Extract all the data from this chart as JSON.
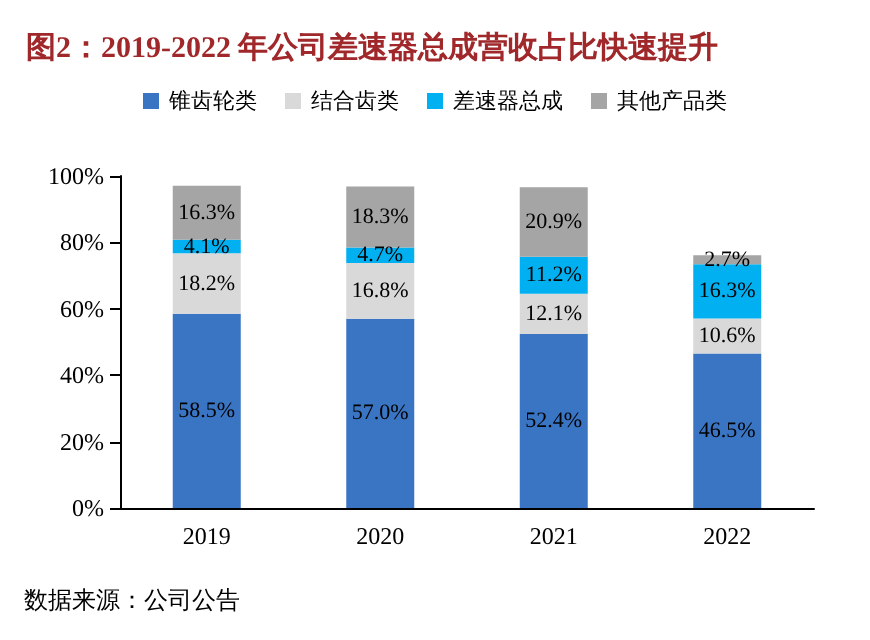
{
  "chart_data": {
    "type": "bar",
    "title": "图2：2019-2022 年公司差速器总成营收占比快速提升",
    "stacked": true,
    "categories": [
      "2019",
      "2020",
      "2021",
      "2022"
    ],
    "series": [
      {
        "name": "锥齿轮类",
        "color": "#3a75c4",
        "values": [
          58.5,
          57.0,
          52.4,
          46.5
        ],
        "value_labels": [
          "58.5%",
          "57.0%",
          "52.4%",
          "46.5%"
        ]
      },
      {
        "name": "结合齿类",
        "color": "#d9d9d9",
        "values": [
          18.2,
          16.8,
          12.1,
          10.6
        ],
        "value_labels": [
          "18.2%",
          "16.8%",
          "12.1%",
          "10.6%"
        ]
      },
      {
        "name": "差速器总成",
        "color": "#00b0f0",
        "values": [
          4.1,
          4.7,
          11.2,
          16.3
        ],
        "value_labels": [
          "4.1%",
          "4.7%",
          "11.2%",
          "16.3%"
        ]
      },
      {
        "name": "其他产品类",
        "color": "#a5a5a5",
        "values": [
          16.3,
          18.3,
          20.9,
          2.7
        ],
        "value_labels": [
          "16.3%",
          "18.3%",
          "20.9%",
          "2.7%"
        ]
      }
    ],
    "ylim": [
      0,
      100
    ],
    "yticks": [
      {
        "value": 0,
        "label": "0%"
      },
      {
        "value": 20,
        "label": "20%"
      },
      {
        "value": 40,
        "label": "40%"
      },
      {
        "value": 60,
        "label": "60%"
      },
      {
        "value": 80,
        "label": "80%"
      },
      {
        "value": 100,
        "label": "100%"
      }
    ],
    "grid": false,
    "legend": "top",
    "annotations": [
      "数据来源：公司公告"
    ]
  }
}
